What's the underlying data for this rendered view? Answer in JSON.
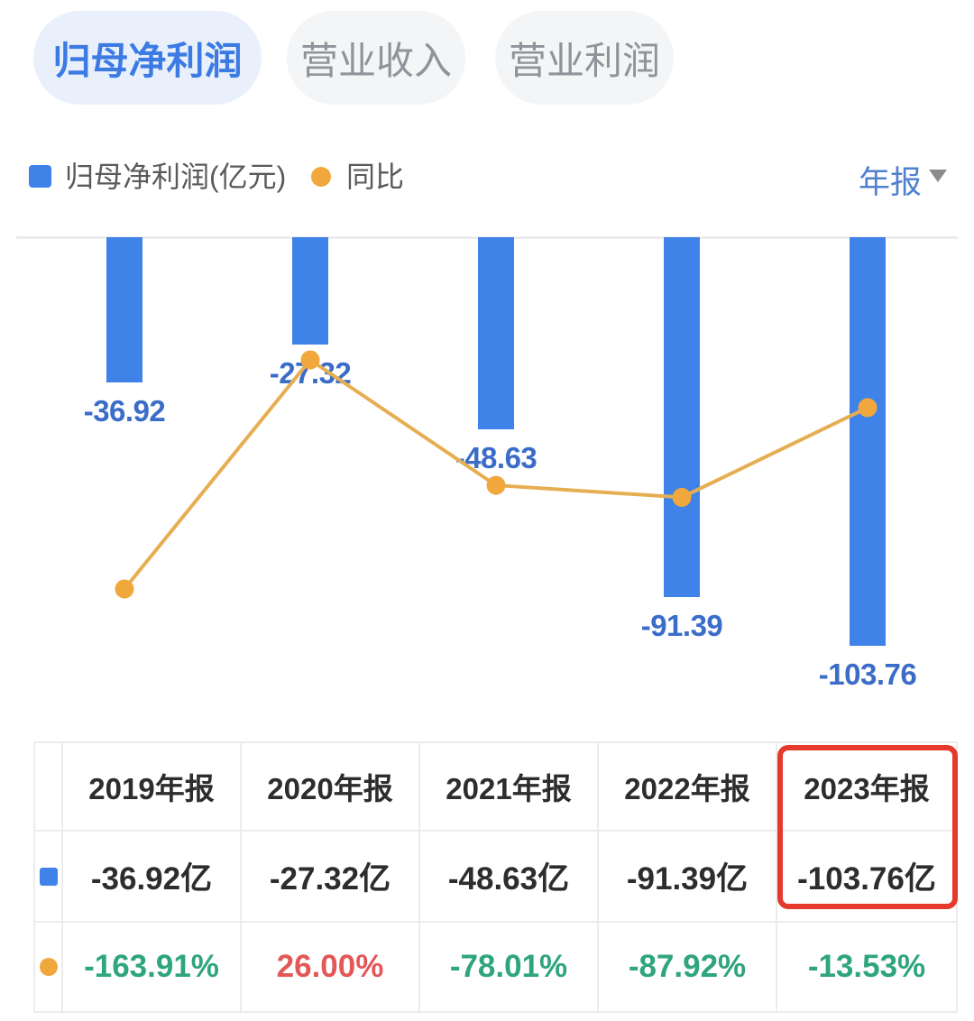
{
  "tabs": [
    {
      "label": "归母净利润",
      "active": true
    },
    {
      "label": "营业收入",
      "active": false
    },
    {
      "label": "营业利润",
      "active": false
    }
  ],
  "legend": {
    "bar_series_label": "归母净利润(亿元)",
    "line_series_label": "同比",
    "period_selector": "年报"
  },
  "chart_data": {
    "type": "bar",
    "subtype": "bar-with-line-overlay",
    "categories": [
      "2019年报",
      "2020年报",
      "2021年报",
      "2022年报",
      "2023年报"
    ],
    "series": [
      {
        "name": "归母净利润(亿元)",
        "type": "bar",
        "unit": "亿元",
        "values": [
          -36.92,
          -27.32,
          -48.63,
          -91.39,
          -103.76
        ],
        "data_labels": [
          "-36.92",
          "-27.32",
          "-48.63",
          "-91.39",
          "-103.76"
        ],
        "color": "#3F82E8",
        "label_color": "#3A6CC8"
      },
      {
        "name": "同比",
        "type": "line",
        "unit": "%",
        "values": [
          -163.91,
          26.0,
          -78.01,
          -87.92,
          -13.53
        ],
        "color": "#E6AE52",
        "dot_color": "#F0A83D"
      }
    ],
    "baseline": 0,
    "grid": "single zero baseline gridline, axes/tick labels hidden",
    "legend_position": "top-left"
  },
  "table": {
    "header": [
      "2019年报",
      "2020年报",
      "2021年报",
      "2022年报",
      "2023年报"
    ],
    "rows": [
      {
        "icon": "blue-square-icon",
        "icon_color": "#3F82E8",
        "cells": [
          {
            "text": "-36.92亿",
            "color": "#2D2D2D"
          },
          {
            "text": "-27.32亿",
            "color": "#2D2D2D"
          },
          {
            "text": "-48.63亿",
            "color": "#2D2D2D"
          },
          {
            "text": "-91.39亿",
            "color": "#2D2D2D"
          },
          {
            "text": "-103.76亿",
            "color": "#2D2D2D"
          }
        ]
      },
      {
        "icon": "orange-dot-icon",
        "icon_color": "#F0A83D",
        "cells": [
          {
            "text": "-163.91%",
            "color": "#2FA57D"
          },
          {
            "text": "26.00%",
            "color": "#E25858"
          },
          {
            "text": "-78.01%",
            "color": "#2FA57D"
          },
          {
            "text": "-87.92%",
            "color": "#2FA57D"
          },
          {
            "text": "-13.53%",
            "color": "#2FA57D"
          }
        ]
      }
    ],
    "highlighted_column": "2023年报",
    "highlight_color": "#E5392B"
  }
}
